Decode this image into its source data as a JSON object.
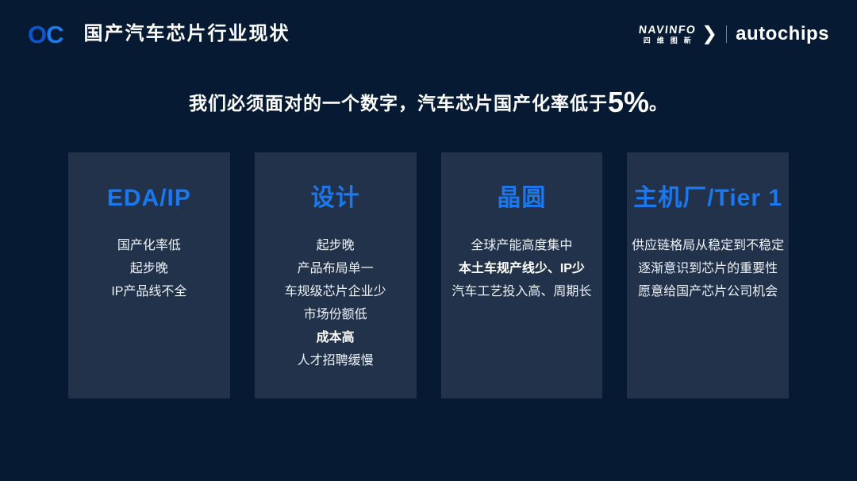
{
  "page": {
    "background": "#061a33"
  },
  "colors": {
    "accent": "#1b78ee",
    "card_bg": "#21324a",
    "logo_o": "#0d55cc",
    "logo_c": "#1b7af0"
  },
  "header": {
    "logo": {
      "part1": "O",
      "part2": "C"
    },
    "title": "国产汽车芯片行业现状",
    "brand": {
      "navinfo_en": "NAVINFO",
      "navinfo_cn": "四维图新",
      "chevron": "❯",
      "autochips": "autochips"
    }
  },
  "headline": {
    "prefix": "我们必须面对的一个数字，汽车芯片国产化率低于",
    "highlight": "5%",
    "suffix": "。"
  },
  "cards": [
    {
      "title": "EDA/IP",
      "lines": [
        {
          "text": "国产化率低",
          "bold": false
        },
        {
          "text": "起步晚",
          "bold": false
        },
        {
          "text": "IP产品线不全",
          "bold": false
        }
      ]
    },
    {
      "title": "设计",
      "lines": [
        {
          "text": "起步晚",
          "bold": false
        },
        {
          "text": "产品布局单一",
          "bold": false
        },
        {
          "text": "车规级芯片企业少",
          "bold": false
        },
        {
          "text": "市场份额低",
          "bold": false
        },
        {
          "text": "成本高",
          "bold": true
        },
        {
          "text": "人才招聘缓慢",
          "bold": false
        }
      ]
    },
    {
      "title": "晶圆",
      "lines": [
        {
          "text": "全球产能高度集中",
          "bold": false
        },
        {
          "text": "本土车规产线少、IP少",
          "bold": true
        },
        {
          "text": "汽车工艺投入高、周期长",
          "bold": false
        }
      ]
    },
    {
      "title": "主机厂/Tier 1",
      "lines": [
        {
          "text": "供应链格局从稳定到不稳定",
          "bold": false
        },
        {
          "text": "逐渐意识到芯片的重要性",
          "bold": false
        },
        {
          "text": "愿意给国产芯片公司机会",
          "bold": false
        }
      ]
    }
  ]
}
